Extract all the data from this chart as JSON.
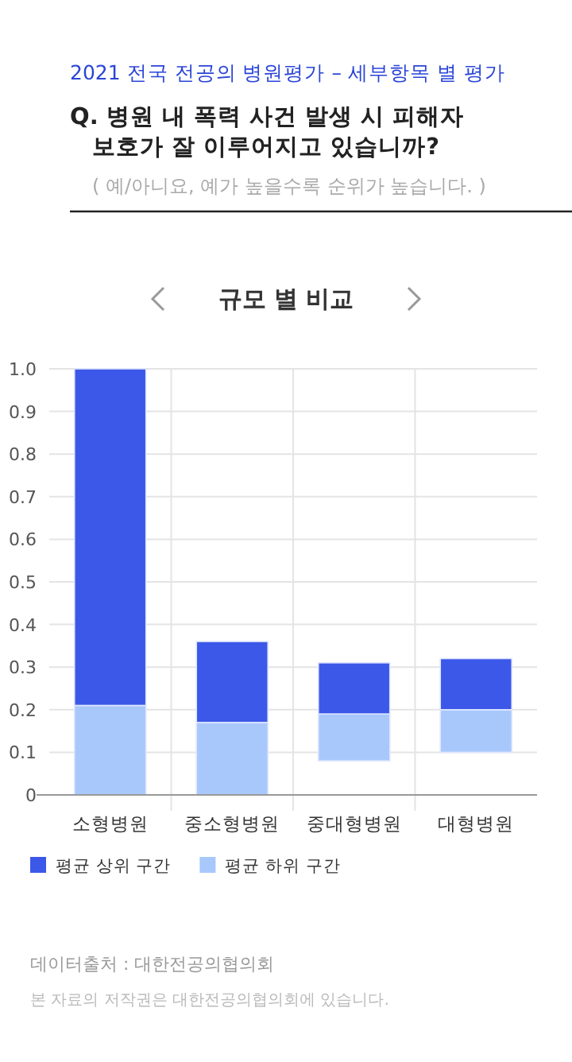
{
  "chart_data": {
    "type": "bar",
    "title": "Q. 병원 내 폭력 사건 발생 시 피해자 보호가 잘 이루어지고 있습니까?",
    "subtitle": "( 예/아니요, 예가 높을수록 순위가 높습니다. )",
    "annotations": [
      "2021 전국 전공의 병원평가 – 세부항목 별 평가",
      "규모 별 비교",
      "데이터출처 : 대한전공의협의회",
      "본 자료의 저작권은 대한전공의협의회에 있습니다."
    ],
    "categories": [
      "소형병원",
      "중소형병원",
      "중대형병원",
      "대형병원"
    ],
    "stacked": true,
    "series": [
      {
        "name": "평균 하위 구간",
        "color": "#a8c8fc",
        "base": [
          0,
          0,
          0.08,
          0.1
        ],
        "values": [
          0.21,
          0.17,
          0.11,
          0.1
        ]
      },
      {
        "name": "평균 상위 구간",
        "color": "#3c58e8",
        "values": [
          0.79,
          0.19,
          0.12,
          0.12
        ]
      }
    ],
    "ylim": [
      0,
      1
    ],
    "yticks": [
      0,
      0.1,
      0.2,
      0.3,
      0.4,
      0.5,
      0.6,
      0.7,
      0.8,
      0.9,
      {
        "value": 1,
        "label": "1.0"
      }
    ],
    "grid": true,
    "legend": "bottom left"
  }
}
